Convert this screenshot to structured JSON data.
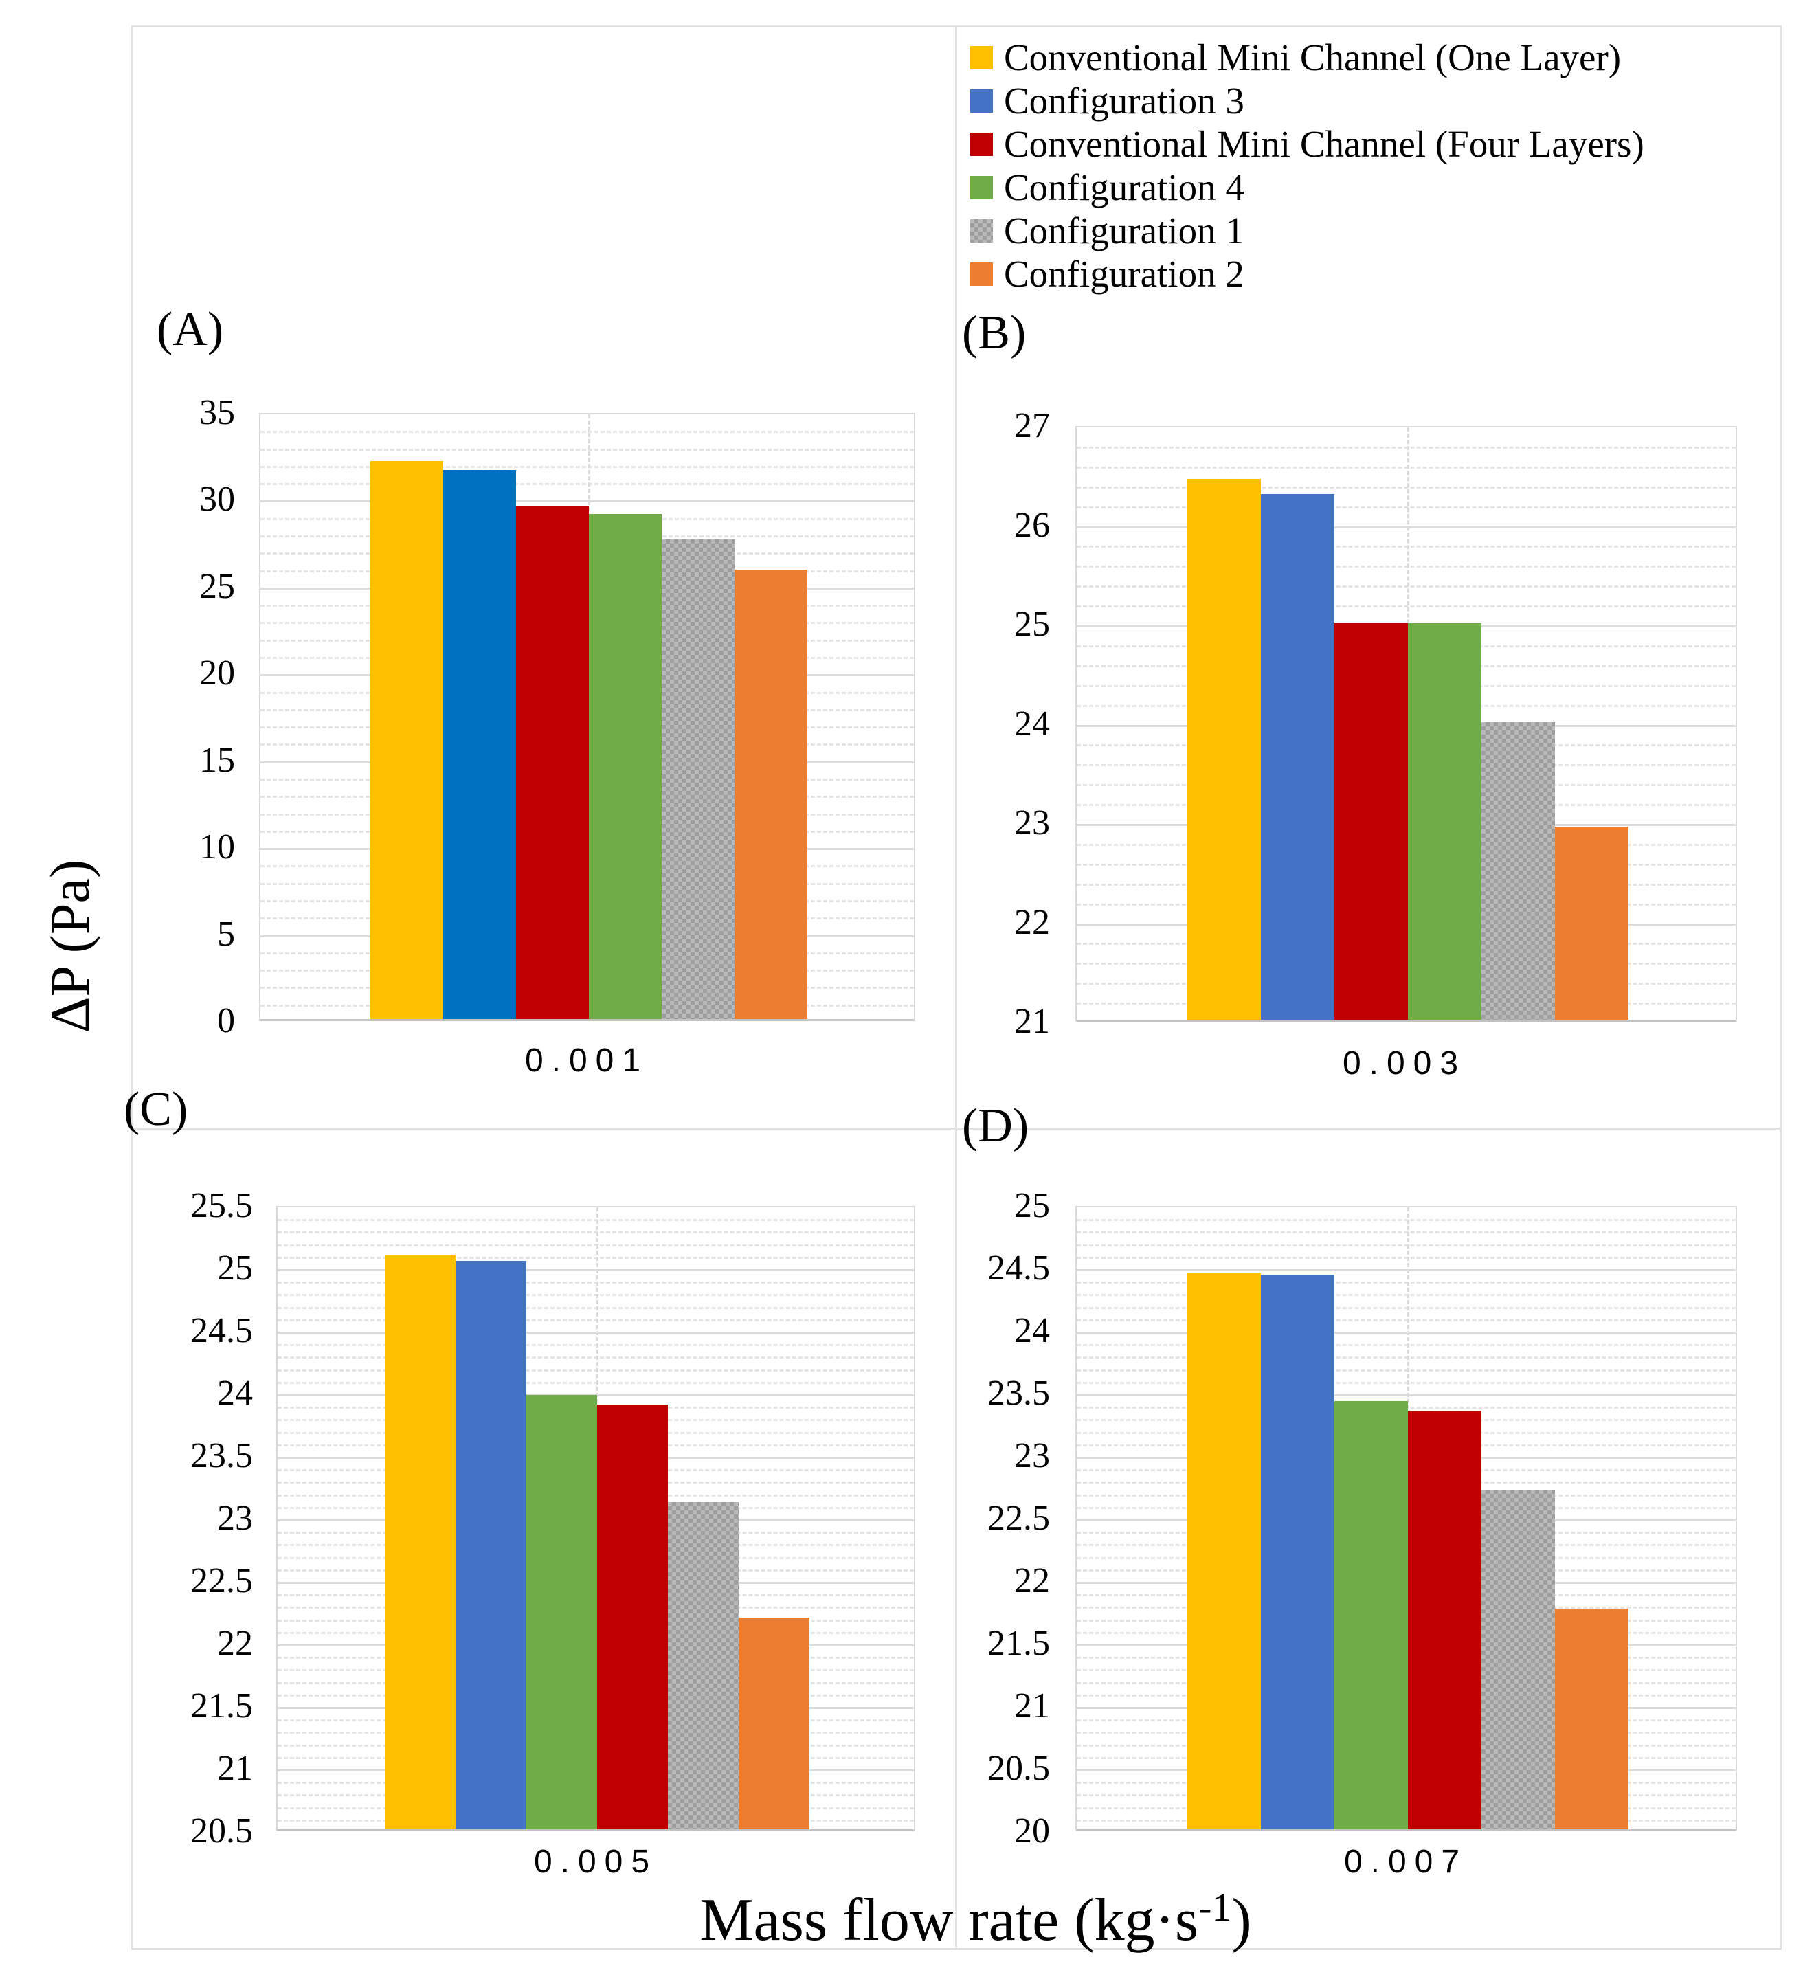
{
  "figure": {
    "ylabel": "ΔP (Pa)",
    "xlabel_main": "Mass flow rate (kg·s",
    "xlabel_sup": "-1",
    "xlabel_end": ")"
  },
  "colors": {
    "gold": "#FFC000",
    "blue_bright": "#0070C0",
    "blue_muted": "#4472C4",
    "dark_red": "#C00000",
    "green": "#70AD47",
    "gray_pattern": "#ABABAB",
    "orange": "#ED7D31",
    "gridline_major": "#DCDCDC",
    "gridline_minor": "#E4E4E4"
  },
  "legend": {
    "items": [
      {
        "label": "Conventional Mini Channel (One Layer)",
        "color": "#FFC000",
        "pattern": false
      },
      {
        "label": "Configuration 3",
        "color": "#4472C4",
        "pattern": false
      },
      {
        "label": "Conventional Mini Channel (Four Layers)",
        "color": "#C00000",
        "pattern": false
      },
      {
        "label": "Configuration 4",
        "color": "#70AD47",
        "pattern": false
      },
      {
        "label": "Configuration 1",
        "color": "#ABABAB",
        "pattern": true
      },
      {
        "label": "Configuration 2",
        "color": "#ED7D31",
        "pattern": false
      }
    ]
  },
  "chart_data": [
    {
      "panel": "(A)",
      "type": "bar",
      "category": "0.001",
      "xlabel_shared": "Mass flow rate (kg·s-1)",
      "ylabel_shared": "ΔP (Pa)",
      "ylim": [
        0,
        35
      ],
      "major_step": 5,
      "minor_step": 1,
      "grid": "major+minor",
      "legend_position": "top-right-of-figure",
      "bars": [
        {
          "series": "Conventional Mini Channel (One Layer)",
          "color": "#FFC000",
          "pattern": false,
          "value": 32.15
        },
        {
          "series": "Configuration 3",
          "color": "#0070C0",
          "pattern": false,
          "value": 31.65
        },
        {
          "series": "Conventional Mini Channel (Four Layers)",
          "color": "#C00000",
          "pattern": false,
          "value": 29.6
        },
        {
          "series": "Configuration 4",
          "color": "#70AD47",
          "pattern": false,
          "value": 29.1
        },
        {
          "series": "Configuration 1",
          "color": "#ABABAB",
          "pattern": true,
          "value": 27.65
        },
        {
          "series": "Configuration 2",
          "color": "#ED7D31",
          "pattern": false,
          "value": 25.9
        }
      ]
    },
    {
      "panel": "(B)",
      "type": "bar",
      "category": "0.003",
      "ylim": [
        21,
        27
      ],
      "major_step": 1,
      "minor_step": 0.2,
      "grid": "major+minor",
      "bars": [
        {
          "series": "Conventional Mini Channel (One Layer)",
          "color": "#FFC000",
          "pattern": false,
          "value": 26.45
        },
        {
          "series": "Configuration 3",
          "color": "#4472C4",
          "pattern": false,
          "value": 26.3
        },
        {
          "series": "Conventional Mini Channel (Four Layers)",
          "color": "#C00000",
          "pattern": false,
          "value": 25.0
        },
        {
          "series": "Configuration 4",
          "color": "#70AD47",
          "pattern": false,
          "value": 25.0
        },
        {
          "series": "Configuration 1",
          "color": "#ABABAB",
          "pattern": true,
          "value": 24.0
        },
        {
          "series": "Configuration 2",
          "color": "#ED7D31",
          "pattern": false,
          "value": 22.95
        }
      ]
    },
    {
      "panel": "(C)",
      "type": "bar",
      "category": "0.005",
      "ylim": [
        20.5,
        25.5
      ],
      "major_step": 0.5,
      "minor_step": 0.1,
      "grid": "major+minor",
      "bars": [
        {
          "series": "Conventional Mini Channel (One Layer)",
          "color": "#FFC000",
          "pattern": false,
          "value": 25.1
        },
        {
          "series": "Configuration 3",
          "color": "#4472C4",
          "pattern": false,
          "value": 25.05
        },
        {
          "series": "Configuration 4",
          "color": "#70AD47",
          "pattern": false,
          "value": 23.98
        },
        {
          "series": "Conventional Mini Channel (Four Layers)",
          "color": "#C00000",
          "pattern": false,
          "value": 23.9
        },
        {
          "series": "Configuration 1",
          "color": "#ABABAB",
          "pattern": true,
          "value": 23.12
        },
        {
          "series": "Configuration 2",
          "color": "#ED7D31",
          "pattern": false,
          "value": 22.2
        }
      ]
    },
    {
      "panel": "(D)",
      "type": "bar",
      "category": "0.007",
      "ylim": [
        20,
        25
      ],
      "major_step": 0.5,
      "minor_step": 0.1,
      "grid": "major+minor",
      "bars": [
        {
          "series": "Conventional Mini Channel (One Layer)",
          "color": "#FFC000",
          "pattern": false,
          "value": 24.45
        },
        {
          "series": "Configuration 3",
          "color": "#4472C4",
          "pattern": false,
          "value": 24.44
        },
        {
          "series": "Configuration 4",
          "color": "#70AD47",
          "pattern": false,
          "value": 23.43
        },
        {
          "series": "Conventional Mini Channel (Four Layers)",
          "color": "#C00000",
          "pattern": false,
          "value": 23.35
        },
        {
          "series": "Configuration 1",
          "color": "#ABABAB",
          "pattern": true,
          "value": 22.72
        },
        {
          "series": "Configuration 2",
          "color": "#ED7D31",
          "pattern": false,
          "value": 21.77
        }
      ]
    }
  ]
}
